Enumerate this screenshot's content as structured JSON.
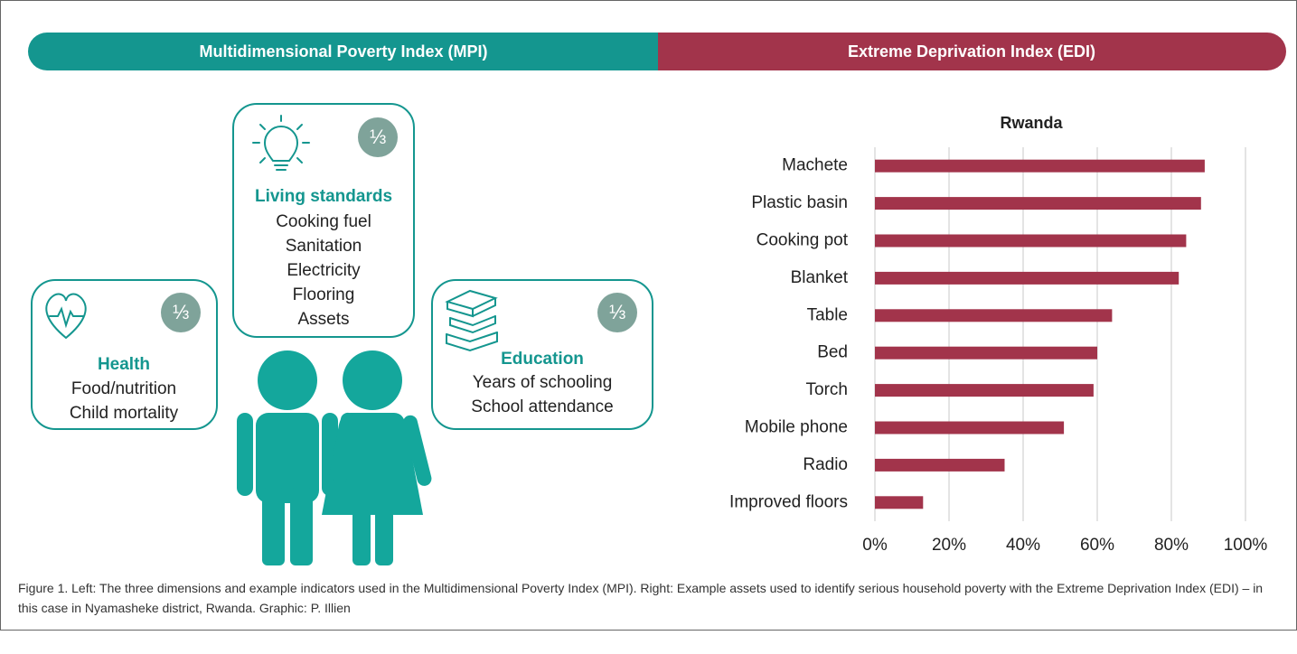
{
  "header": {
    "left": "Multidimensional Poverty Index (MPI)",
    "right": "Extreme Deprivation Index (EDI)"
  },
  "dimensions": [
    {
      "title": "Living standards",
      "weight": "⅓",
      "items": [
        "Cooking fuel",
        "Sanitation",
        "Electricity",
        "Flooring",
        "Assets"
      ]
    },
    {
      "title": "Health",
      "weight": "⅓",
      "items": [
        "Food/nutrition",
        "Child mortality"
      ]
    },
    {
      "title": "Education",
      "weight": "⅓",
      "items": [
        "Years of schooling",
        "School attendance"
      ]
    }
  ],
  "chart_data": {
    "type": "bar",
    "orientation": "horizontal",
    "title": "Rwanda",
    "categories": [
      "Machete",
      "Plastic basin",
      "Cooking pot",
      "Blanket",
      "Table",
      "Bed",
      "Torch",
      "Mobile phone",
      "Radio",
      "Improved floors"
    ],
    "values": [
      89,
      88,
      84,
      82,
      64,
      60,
      59,
      51,
      35,
      13
    ],
    "color": "#a2344b",
    "xlim": [
      0,
      100
    ],
    "xticks": [
      {
        "value": 0,
        "label": "0%"
      },
      {
        "value": 20,
        "label": "20%"
      },
      {
        "value": 40,
        "label": "40%"
      },
      {
        "value": 60,
        "label": "60%"
      },
      {
        "value": 80,
        "label": "80%"
      },
      {
        "value": 100,
        "label": "100%"
      }
    ],
    "grid": true
  },
  "caption": "Figure 1. Left: The three dimensions and example indicators used in the Multidimensional Poverty Index (MPI). Right: Example assets used to identify serious household poverty with the Extreme Deprivation Index (EDI) – in this case in Nyamasheke district, Rwanda. Graphic: P. Illien"
}
